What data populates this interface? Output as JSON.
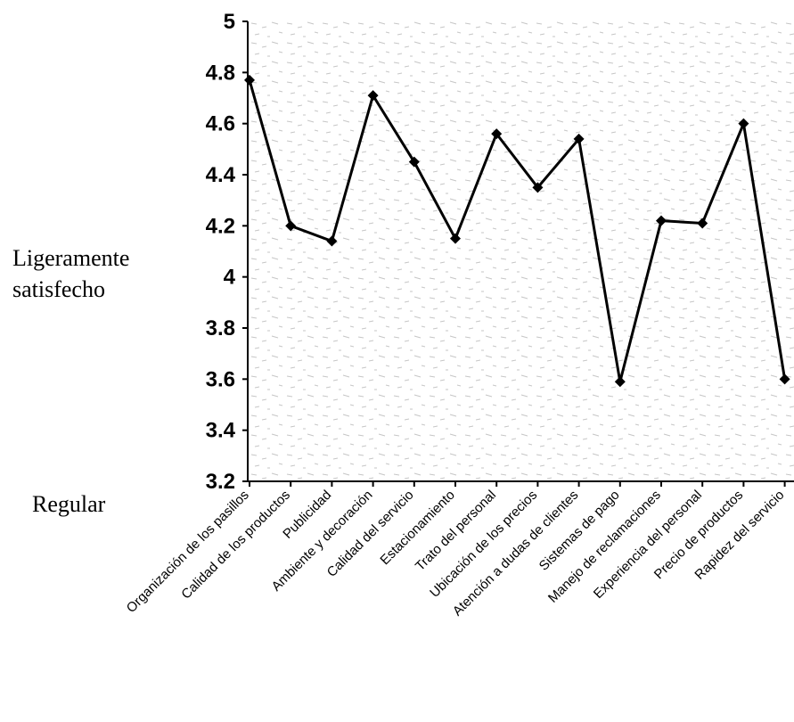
{
  "chart_data": {
    "type": "line",
    "categories": [
      "Organización de los pasillos",
      "Calidad de los productos",
      "Publicidad",
      "Ambiente y decoración",
      "Calidad del servicio",
      "Estacionamiento",
      "Trato del personal",
      "Ubicación de los precios",
      "Atención a dudas de clientes",
      "Sistemas de pago",
      "Manejo de reclamaciones",
      "Experiencia del personal",
      "Precio de productos",
      "Rapidez del servicio"
    ],
    "values": [
      4.77,
      4.2,
      4.14,
      4.71,
      4.45,
      4.15,
      4.56,
      4.35,
      4.54,
      3.59,
      4.22,
      4.21,
      4.6,
      3.6
    ],
    "ylim": [
      3.2,
      5
    ],
    "yticks": [
      "5",
      "4.8",
      "4.6",
      "4.4",
      "4.2",
      "4",
      "3.8",
      "3.6",
      "3.4",
      "3.2"
    ],
    "side_labels": {
      "upper": [
        "Ligeramente",
        "satisfecho"
      ],
      "lower": "Regular"
    },
    "grid": false,
    "line_color": "#000000",
    "marker": "diamond"
  }
}
